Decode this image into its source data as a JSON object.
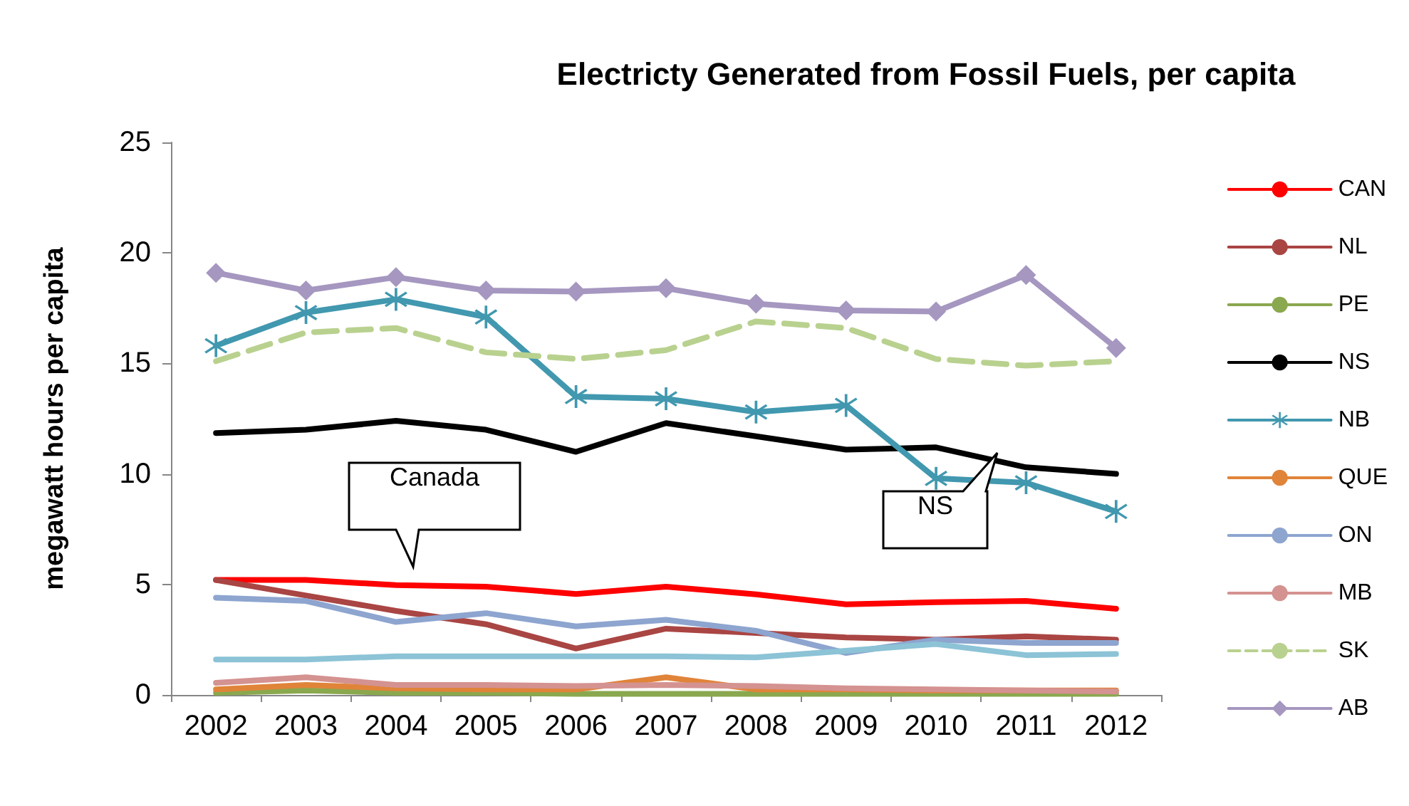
{
  "chart_data": {
    "type": "line",
    "title": "Electricty Generated from Fossil Fuels, per capita",
    "ylabel": "megawatt hours per capita",
    "categories": [
      "2002",
      "2003",
      "2004",
      "2005",
      "2006",
      "2007",
      "2008",
      "2009",
      "2010",
      "2011",
      "2012"
    ],
    "ylim": [
      0,
      25
    ],
    "yticks": [
      0,
      5,
      10,
      15,
      20,
      25
    ],
    "grid": false,
    "legend": "right",
    "marker": "none",
    "line_style": "solid",
    "annotations": [
      "Canada",
      "NS"
    ],
    "series": [
      {
        "name": "CAN",
        "color": "#ff0000",
        "values": [
          5.2,
          5.2,
          4.97,
          4.9,
          4.57,
          4.9,
          4.55,
          4.1,
          4.2,
          4.25,
          3.9
        ]
      },
      {
        "name": "NL",
        "color": "#a94543",
        "values": [
          5.2,
          4.5,
          3.8,
          3.2,
          2.1,
          3.0,
          2.8,
          2.6,
          2.5,
          2.65,
          2.5
        ]
      },
      {
        "name": "PE",
        "color": "#8aa84e",
        "values": [
          0.1,
          0.2,
          0.1,
          0.1,
          0.05,
          0.05,
          0.05,
          0.05,
          0.05,
          0.05,
          0.05
        ]
      },
      {
        "name": "NS",
        "color": "#000000",
        "values": [
          11.85,
          12.0,
          12.4,
          12.0,
          11.0,
          12.3,
          11.7,
          11.1,
          11.2,
          10.3,
          10.0
        ]
      },
      {
        "name": "NB",
        "color": "#4198af",
        "marker": "cross",
        "values": [
          15.8,
          17.3,
          17.9,
          17.1,
          13.5,
          13.4,
          12.8,
          13.1,
          9.8,
          9.6,
          8.3
        ]
      },
      {
        "name": "QUE",
        "color": "#e0843a",
        "values": [
          0.25,
          0.45,
          0.3,
          0.25,
          0.25,
          0.8,
          0.25,
          0.25,
          0.2,
          0.2,
          0.2
        ]
      },
      {
        "name": "ON",
        "color": "#8da5cf",
        "values": [
          4.4,
          4.25,
          3.3,
          3.7,
          3.1,
          3.4,
          2.9,
          1.9,
          2.5,
          2.35,
          2.35
        ]
      },
      {
        "name": "MB",
        "color": "#d49290",
        "values": [
          0.55,
          0.8,
          0.45,
          0.45,
          0.4,
          0.45,
          0.4,
          0.3,
          0.25,
          0.2,
          0.15
        ]
      },
      {
        "name": "SK",
        "color": "#b9d18f",
        "line_style": "dashed",
        "values": [
          15.1,
          16.4,
          16.6,
          15.5,
          15.2,
          15.6,
          16.9,
          16.6,
          15.2,
          14.9,
          15.1
        ]
      },
      {
        "name": "AB",
        "color": "#a597c0",
        "marker": "diamond",
        "values": [
          19.1,
          18.3,
          18.9,
          18.3,
          18.25,
          18.4,
          17.7,
          17.4,
          17.35,
          19.0,
          15.7
        ]
      },
      {
        "color": "#8cc3d6",
        "values": [
          1.6,
          1.6,
          1.75,
          1.75,
          1.75,
          1.75,
          1.7,
          2.0,
          2.3,
          1.8,
          1.85
        ]
      }
    ]
  }
}
